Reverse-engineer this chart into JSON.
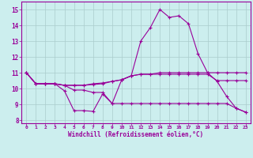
{
  "xlabel": "Windchill (Refroidissement éolien,°C)",
  "x": [
    0,
    1,
    2,
    3,
    4,
    5,
    6,
    7,
    8,
    9,
    10,
    11,
    12,
    13,
    14,
    15,
    16,
    17,
    18,
    19,
    20,
    21,
    22,
    23
  ],
  "line1": [
    11.0,
    10.3,
    10.3,
    10.3,
    9.85,
    8.6,
    8.6,
    8.55,
    9.65,
    9.05,
    10.55,
    10.8,
    13.0,
    13.85,
    15.0,
    14.5,
    14.6,
    14.1,
    12.2,
    11.0,
    10.45,
    9.5,
    8.75,
    8.5
  ],
  "line2": [
    11.0,
    10.3,
    10.3,
    10.3,
    10.2,
    10.2,
    10.2,
    10.25,
    10.3,
    10.45,
    10.55,
    10.8,
    10.9,
    10.9,
    10.9,
    10.9,
    10.9,
    10.9,
    10.9,
    10.9,
    10.5,
    10.5,
    10.5,
    10.5
  ],
  "line3": [
    11.0,
    10.3,
    10.3,
    10.3,
    10.2,
    10.2,
    10.2,
    10.3,
    10.35,
    10.45,
    10.55,
    10.8,
    10.9,
    10.9,
    11.0,
    11.0,
    11.0,
    11.0,
    11.0,
    11.0,
    11.0,
    11.0,
    11.0,
    11.0
  ],
  "line4": [
    11.0,
    10.3,
    10.3,
    10.3,
    10.2,
    9.9,
    9.9,
    9.75,
    9.75,
    9.05,
    9.05,
    9.05,
    9.05,
    9.05,
    9.05,
    9.05,
    9.05,
    9.05,
    9.05,
    9.05,
    9.05,
    9.05,
    8.75,
    8.5
  ],
  "color": "#990099",
  "bg_color": "#cceeee",
  "grid_color": "#aacccc",
  "ylim": [
    7.8,
    15.5
  ],
  "xlim": [
    -0.5,
    23.5
  ],
  "yticks": [
    8,
    9,
    10,
    11,
    12,
    13,
    14,
    15
  ],
  "xticks": [
    0,
    1,
    2,
    3,
    4,
    5,
    6,
    7,
    8,
    9,
    10,
    11,
    12,
    13,
    14,
    15,
    16,
    17,
    18,
    19,
    20,
    21,
    22,
    23
  ]
}
